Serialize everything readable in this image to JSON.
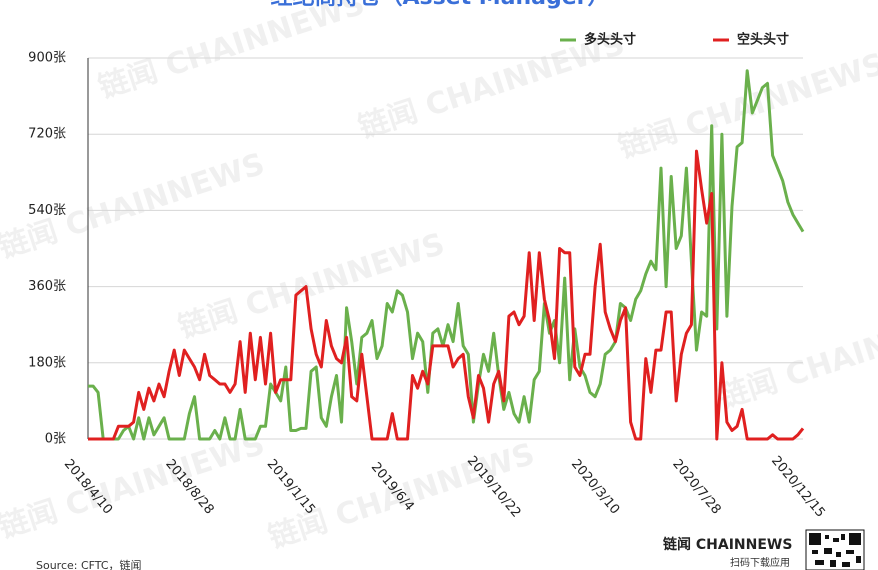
{
  "chart_data": {
    "type": "line",
    "title": "经纪商持仓（Asset Manager）",
    "categories": [
      "2018/4/10",
      null,
      null,
      null,
      null,
      null,
      null,
      null,
      null,
      null,
      null,
      null,
      null,
      null,
      null,
      null,
      null,
      null,
      null,
      null,
      "2018/8/28",
      null,
      null,
      null,
      null,
      null,
      null,
      null,
      null,
      null,
      null,
      null,
      null,
      null,
      null,
      null,
      null,
      null,
      null,
      null,
      "2019/1/15",
      null,
      null,
      null,
      null,
      null,
      null,
      null,
      null,
      null,
      null,
      null,
      null,
      null,
      null,
      null,
      null,
      null,
      null,
      null,
      "2019/6/4",
      null,
      null,
      null,
      null,
      null,
      null,
      null,
      null,
      null,
      null,
      null,
      null,
      null,
      null,
      null,
      null,
      null,
      null,
      null,
      "2019/10/22",
      null,
      null,
      null,
      null,
      null,
      null,
      null,
      null,
      null,
      null,
      null,
      null,
      null,
      null,
      null,
      null,
      null,
      null,
      null,
      "2020/3/10",
      null,
      null,
      null,
      null,
      null,
      null,
      null,
      null,
      null,
      null,
      null,
      null,
      null,
      null,
      null,
      null,
      null,
      null,
      null,
      "2020/7/28",
      null,
      null,
      null,
      null,
      null,
      null,
      null,
      null,
      null,
      null,
      null,
      null,
      null,
      null,
      null,
      null,
      null,
      null,
      null,
      "2020/12/15",
      null
    ],
    "series": [
      {
        "name": "多头头寸",
        "color": "#6ab04c",
        "values": [
          125,
          125,
          110,
          0,
          0,
          0,
          0,
          20,
          30,
          0,
          50,
          0,
          50,
          10,
          30,
          50,
          0,
          0,
          0,
          0,
          60,
          100,
          0,
          0,
          0,
          20,
          0,
          50,
          0,
          0,
          70,
          0,
          0,
          0,
          30,
          30,
          130,
          110,
          90,
          170,
          20,
          20,
          25,
          25,
          160,
          170,
          50,
          30,
          100,
          150,
          40,
          310,
          230,
          130,
          240,
          250,
          280,
          190,
          220,
          320,
          300,
          350,
          340,
          300,
          190,
          250,
          230,
          110,
          250,
          260,
          220,
          270,
          230,
          320,
          220,
          200,
          40,
          130,
          200,
          160,
          250,
          150,
          70,
          110,
          60,
          40,
          100,
          40,
          140,
          160,
          320,
          250,
          280,
          180,
          380,
          140,
          260,
          170,
          150,
          110,
          100,
          130,
          200,
          210,
          230,
          320,
          310,
          280,
          330,
          350,
          390,
          420,
          400,
          640,
          360,
          620,
          450,
          480,
          640,
          420,
          210,
          300,
          290,
          740,
          260,
          720,
          290,
          550,
          690,
          700,
          870,
          770,
          800,
          830,
          840,
          670,
          640,
          610,
          560,
          530,
          510,
          490
        ]
      },
      {
        "name": "空头头寸",
        "color": "#e02020",
        "values": [
          0,
          0,
          0,
          0,
          0,
          0,
          30,
          30,
          30,
          40,
          110,
          70,
          120,
          90,
          130,
          100,
          160,
          210,
          150,
          210,
          190,
          170,
          140,
          200,
          150,
          140,
          130,
          130,
          110,
          130,
          230,
          110,
          250,
          140,
          240,
          130,
          250,
          110,
          140,
          140,
          140,
          340,
          350,
          360,
          260,
          200,
          170,
          280,
          220,
          190,
          180,
          240,
          100,
          90,
          200,
          100,
          0,
          0,
          0,
          0,
          60,
          0,
          0,
          0,
          150,
          120,
          160,
          130,
          220,
          220,
          220,
          220,
          170,
          190,
          200,
          100,
          50,
          150,
          120,
          40,
          130,
          160,
          90,
          290,
          300,
          270,
          290,
          440,
          280,
          440,
          330,
          280,
          190,
          450,
          440,
          440,
          170,
          150,
          200,
          200,
          360,
          460,
          300,
          260,
          230,
          280,
          310,
          40,
          0,
          0,
          190,
          110,
          210,
          210,
          300,
          300,
          90,
          200,
          250,
          270,
          680,
          590,
          510,
          580,
          0,
          180,
          40,
          20,
          30,
          70,
          0,
          0,
          0,
          0,
          0,
          10,
          0,
          0,
          0,
          0,
          10,
          25
        ]
      }
    ],
    "ylim": [
      0,
      900
    ],
    "yticks": [
      {
        "value": 0,
        "label": "0张"
      },
      {
        "value": 180,
        "label": "180张"
      },
      {
        "value": 360,
        "label": "360张"
      },
      {
        "value": 540,
        "label": "540张"
      },
      {
        "value": 720,
        "label": "720张"
      },
      {
        "value": 900,
        "label": "900张"
      }
    ],
    "grid": true,
    "legend": "top-right",
    "source": "Source: CFTC，链闻",
    "watermark": "链闻 CHAINNEWS",
    "logo": "链闻 CHAINNEWS",
    "logo_caption": "扫码下载应用"
  }
}
